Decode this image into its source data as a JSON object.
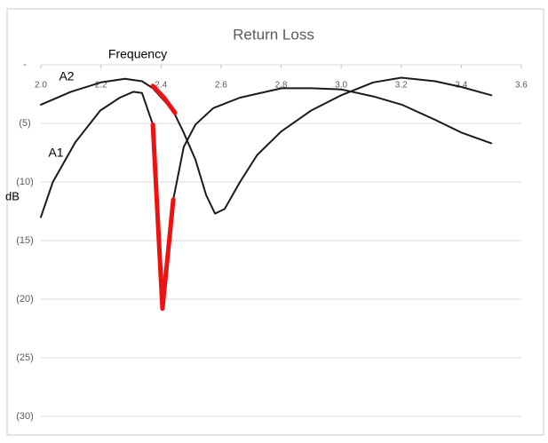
{
  "chart_data": {
    "type": "line",
    "title": "Return Loss",
    "x_label": "Frequency",
    "y_label": "dB",
    "xlim": [
      2.0,
      3.6
    ],
    "xticks": [
      {
        "value": 2.0,
        "label": "2.0"
      },
      2.2,
      2.4,
      2.6,
      2.8,
      {
        "value": 3.0,
        "label": "3.0"
      },
      3.2,
      3.4,
      3.6
    ],
    "ylim": [
      -30,
      0
    ],
    "yticks": [
      {
        "value": 0,
        "label": "-"
      },
      {
        "value": -5,
        "label": "(5)"
      },
      {
        "value": -10,
        "label": "(10)"
      },
      {
        "value": -15,
        "label": "(15)"
      },
      {
        "value": -20,
        "label": "(20)"
      },
      {
        "value": -25,
        "label": "(25)"
      },
      {
        "value": -30,
        "label": "(30)"
      }
    ],
    "grid": true,
    "series": [
      {
        "name": "A1",
        "color": "#1a1a1a",
        "x": [
          2.0,
          2.04,
          2.115,
          2.198,
          2.263,
          2.308,
          2.337,
          2.373,
          2.405,
          2.441,
          2.476,
          2.515,
          2.574,
          2.663,
          2.802,
          2.9,
          3.0,
          3.107,
          3.202,
          3.313,
          3.402,
          3.5
        ],
        "values": [
          -13.0,
          -10.0,
          -6.6,
          -3.9,
          -2.8,
          -2.3,
          -2.4,
          -5.1,
          -20.8,
          -11.5,
          -7.0,
          -5.1,
          -3.7,
          -2.8,
          -2.0,
          -2.0,
          -2.1,
          -2.7,
          -3.4,
          -4.7,
          -5.8,
          -6.7
        ]
      },
      {
        "name": "A2",
        "color": "#1a1a1a",
        "x": [
          2.0,
          2.1,
          2.2,
          2.28,
          2.337,
          2.373,
          2.44,
          2.476,
          2.515,
          2.55,
          2.58,
          2.612,
          2.663,
          2.72,
          2.8,
          2.9,
          3.0,
          3.107,
          3.2,
          3.313,
          3.402,
          3.5
        ],
        "values": [
          -3.4,
          -2.3,
          -1.5,
          -1.2,
          -1.4,
          -2.0,
          -3.9,
          -5.8,
          -8.1,
          -11.1,
          -12.7,
          -12.3,
          -10.0,
          -7.7,
          -5.7,
          -3.9,
          -2.6,
          -1.5,
          -1.1,
          -1.4,
          -1.9,
          -2.6
        ]
      },
      {
        "color": "#ee1111",
        "x": [
          2.373,
          2.405,
          2.441
        ],
        "values": [
          -5.1,
          -20.8,
          -11.5
        ]
      },
      {
        "color": "#ee1111",
        "x": [
          2.373,
          2.41,
          2.447
        ],
        "values": [
          -1.8,
          -2.8,
          -4.1
        ]
      }
    ]
  }
}
